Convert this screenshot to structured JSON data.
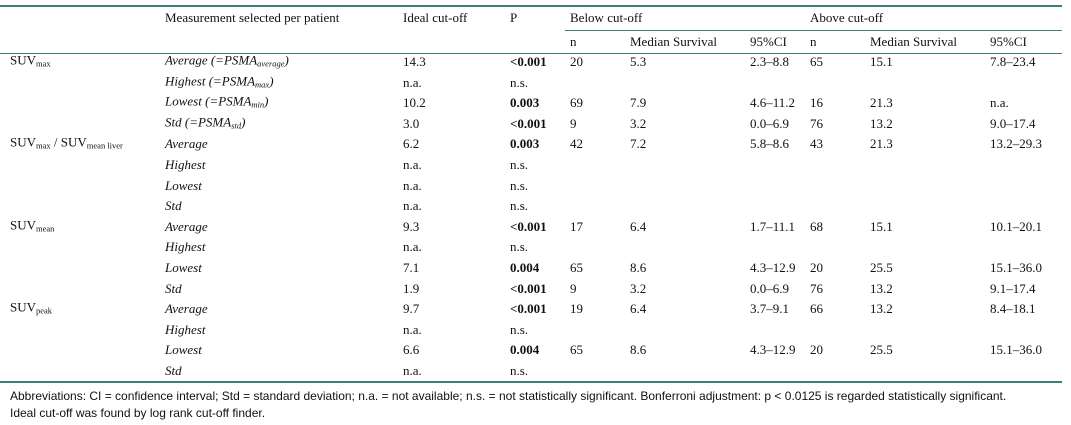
{
  "header": {
    "row1": [
      "Measurement selected per patient",
      "Ideal cut-off",
      "P",
      "Below cut-off",
      "Above cut-off"
    ],
    "row2": [
      "n",
      "Median Survival",
      "95%CI",
      "n",
      "Median Survival",
      "95%CI"
    ]
  },
  "groups": [
    {
      "label": [
        {
          "text": "SUV"
        },
        {
          "sub": "max"
        }
      ],
      "rows": [
        {
          "measure": [
            {
              "text": "Average (=PSMA"
            },
            {
              "sub": "average"
            },
            {
              "text": ")"
            }
          ],
          "cutoff": "14.3",
          "p": "<0.001",
          "p_bold": true,
          "below": [
            "20",
            "5.3",
            "2.3–8.8"
          ],
          "above": [
            "65",
            "15.1",
            "7.8–23.4"
          ]
        },
        {
          "measure": [
            {
              "text": "Highest (=PSMA"
            },
            {
              "sub": "max"
            },
            {
              "text": ")"
            }
          ],
          "cutoff": "n.a.",
          "p": "n.s.",
          "p_bold": false
        },
        {
          "measure": [
            {
              "text": "Lowest (=PSMA"
            },
            {
              "sub": "min"
            },
            {
              "text": ")"
            }
          ],
          "cutoff": "10.2",
          "p": "0.003",
          "p_bold": true,
          "below": [
            "69",
            "7.9",
            "4.6–11.2"
          ],
          "above": [
            "16",
            "21.3",
            "n.a."
          ]
        },
        {
          "measure": [
            {
              "text": "Std (=PSMA"
            },
            {
              "sub": "std"
            },
            {
              "text": ")"
            }
          ],
          "cutoff": "3.0",
          "p": "<0.001",
          "p_bold": true,
          "below": [
            "9",
            "3.2",
            "0.0–6.9"
          ],
          "above": [
            "76",
            "13.2",
            "9.0–17.4"
          ]
        }
      ]
    },
    {
      "label": [
        {
          "text": "SUV"
        },
        {
          "sub": "max"
        },
        {
          "text": " / SUV"
        },
        {
          "sub": "mean liver"
        }
      ],
      "rows": [
        {
          "measure": [
            {
              "text": "Average"
            }
          ],
          "cutoff": "6.2",
          "p": "0.003",
          "p_bold": true,
          "below": [
            "42",
            "7.2",
            "5.8–8.6"
          ],
          "above": [
            "43",
            "21.3",
            "13.2–29.3"
          ]
        },
        {
          "measure": [
            {
              "text": "Highest"
            }
          ],
          "cutoff": "n.a.",
          "p": "n.s.",
          "p_bold": false
        },
        {
          "measure": [
            {
              "text": "Lowest"
            }
          ],
          "cutoff": "n.a.",
          "p": "n.s.",
          "p_bold": false
        },
        {
          "measure": [
            {
              "text": "Std"
            }
          ],
          "cutoff": "n.a.",
          "p": "n.s.",
          "p_bold": false
        }
      ]
    },
    {
      "label": [
        {
          "text": "SUV"
        },
        {
          "sub": "mean"
        }
      ],
      "rows": [
        {
          "measure": [
            {
              "text": "Average"
            }
          ],
          "cutoff": "9.3",
          "p": "<0.001",
          "p_bold": true,
          "below": [
            "17",
            "6.4",
            "1.7–11.1"
          ],
          "above": [
            "68",
            "15.1",
            "10.1–20.1"
          ]
        },
        {
          "measure": [
            {
              "text": "Highest"
            }
          ],
          "cutoff": "n.a.",
          "p": "n.s.",
          "p_bold": false
        },
        {
          "measure": [
            {
              "text": "Lowest"
            }
          ],
          "cutoff": "7.1",
          "p": "0.004",
          "p_bold": true,
          "below": [
            "65",
            "8.6",
            "4.3–12.9"
          ],
          "above": [
            "20",
            "25.5",
            "15.1–36.0"
          ]
        },
        {
          "measure": [
            {
              "text": "Std"
            }
          ],
          "cutoff": "1.9",
          "p": "<0.001",
          "p_bold": true,
          "below": [
            "9",
            "3.2",
            "0.0–6.9"
          ],
          "above": [
            "76",
            "13.2",
            "9.1–17.4"
          ]
        }
      ]
    },
    {
      "label": [
        {
          "text": "SUV"
        },
        {
          "sub": "peak"
        }
      ],
      "rows": [
        {
          "measure": [
            {
              "text": "Average"
            }
          ],
          "cutoff": "9.7",
          "p": "<0.001",
          "p_bold": true,
          "below": [
            "19",
            "6.4",
            "3.7–9.1"
          ],
          "above": [
            "66",
            "13.2",
            "8.4–18.1"
          ]
        },
        {
          "measure": [
            {
              "text": "Highest"
            }
          ],
          "cutoff": "n.a.",
          "p": "n.s.",
          "p_bold": false
        },
        {
          "measure": [
            {
              "text": "Lowest"
            }
          ],
          "cutoff": "6.6",
          "p": "0.004",
          "p_bold": true,
          "below": [
            "65",
            "8.6",
            "4.3–12.9"
          ],
          "above": [
            "20",
            "25.5",
            "15.1–36.0"
          ]
        },
        {
          "measure": [
            {
              "text": "Std"
            }
          ],
          "cutoff": "n.a.",
          "p": "n.s.",
          "p_bold": false
        }
      ]
    }
  ],
  "footnote": "Abbreviations: CI = confidence interval; Std = standard deviation; n.a. = not available; n.s. = not statistically significant. Bonferroni adjustment: p < 0.0125 is regarded statistically significant. Ideal cut-off was found by log rank cut-off finder."
}
